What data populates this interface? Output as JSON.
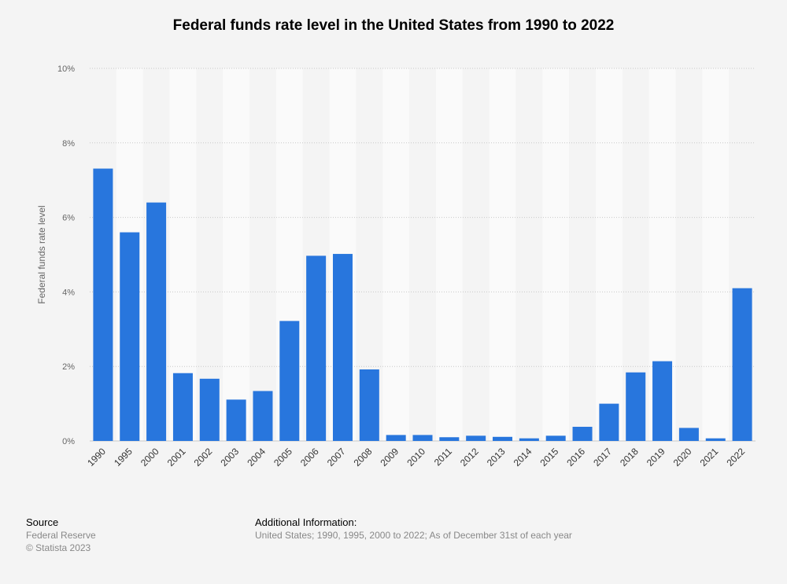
{
  "chart_data": {
    "type": "bar",
    "title": "Federal funds rate level in the United States from 1990 to 2022",
    "xlabel": "",
    "ylabel": "Federal funds rate level",
    "ylim": [
      0,
      10
    ],
    "yticks": [
      0,
      2,
      4,
      6,
      8,
      10
    ],
    "ytick_labels": [
      "0%",
      "2%",
      "4%",
      "6%",
      "8%",
      "10%"
    ],
    "grid": true,
    "bar_color": "#2876dd",
    "categories": [
      "1990",
      "1995",
      "2000",
      "2001",
      "2002",
      "2003",
      "2004",
      "2005",
      "2006",
      "2007",
      "2008",
      "2009",
      "2010",
      "2011",
      "2012",
      "2013",
      "2014",
      "2015",
      "2016",
      "2017",
      "2018",
      "2019",
      "2020",
      "2021",
      "2022"
    ],
    "values": [
      7.31,
      5.6,
      6.4,
      1.82,
      1.67,
      1.11,
      1.34,
      3.22,
      4.97,
      5.02,
      1.92,
      0.16,
      0.16,
      0.1,
      0.14,
      0.11,
      0.07,
      0.14,
      0.38,
      1.0,
      1.84,
      2.14,
      0.35,
      0.07,
      4.1
    ]
  },
  "footer": {
    "source_heading": "Source",
    "source": "Federal Reserve",
    "copyright": "© Statista 2023",
    "info_heading": "Additional Information:",
    "info_text": "United States; 1990, 1995, 2000 to 2022; As of December 31st of each year"
  }
}
